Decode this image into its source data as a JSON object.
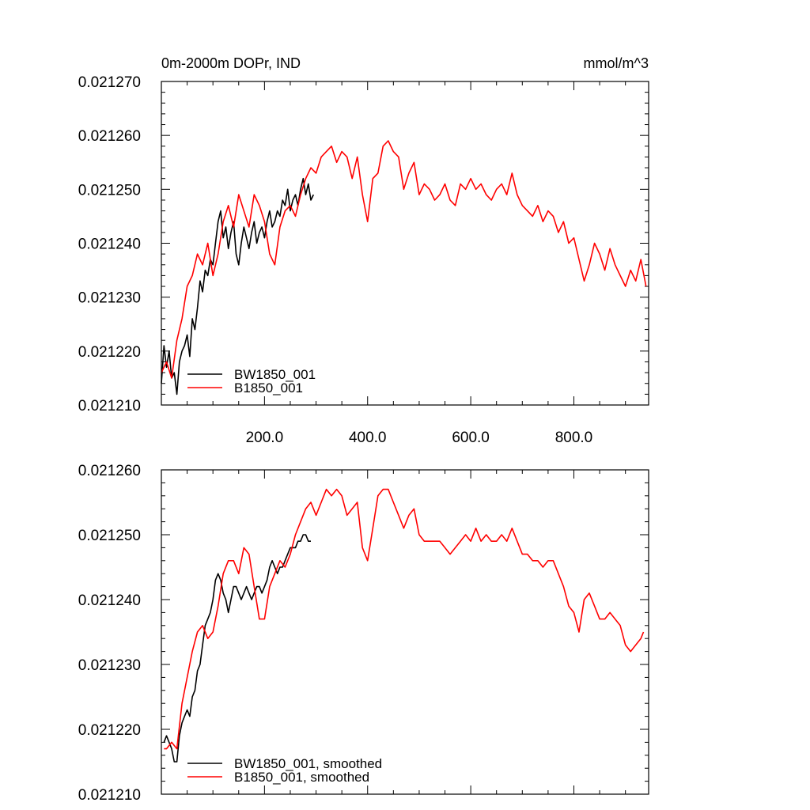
{
  "chart_data": [
    {
      "type": "line",
      "title": "0m-2000m DOPr, IND",
      "units": "mmol/m^3",
      "xlim": [
        0,
        945
      ],
      "ylim": [
        0.02121,
        0.02127
      ],
      "x_ticks": [
        200,
        400,
        600,
        800
      ],
      "x_tick_labels": [
        "200.0",
        "400.0",
        "600.0",
        "800.0"
      ],
      "y_ticks": [
        0.02121,
        0.02122,
        0.02123,
        0.02124,
        0.02125,
        0.02126,
        0.02127
      ],
      "y_tick_labels": [
        "0.021210",
        "0.021220",
        "0.021230",
        "0.021240",
        "0.021250",
        "0.021260",
        "0.021270"
      ],
      "legend_position": "bottom-left",
      "series": [
        {
          "name": "BW1850_001",
          "color": "#000000",
          "x": [
            0,
            5,
            10,
            15,
            20,
            25,
            30,
            35,
            40,
            45,
            50,
            55,
            60,
            65,
            70,
            75,
            80,
            85,
            90,
            95,
            100,
            105,
            110,
            115,
            120,
            125,
            130,
            135,
            140,
            145,
            150,
            155,
            160,
            165,
            170,
            175,
            180,
            185,
            190,
            195,
            200,
            205,
            210,
            215,
            220,
            225,
            230,
            235,
            240,
            245,
            250,
            255,
            260,
            265,
            270,
            275,
            280,
            285,
            290,
            295
          ],
          "y": [
            0.021214,
            0.021221,
            0.021217,
            0.02122,
            0.021215,
            0.021216,
            0.021212,
            0.021218,
            0.02122,
            0.021221,
            0.021223,
            0.021219,
            0.021226,
            0.021224,
            0.021228,
            0.021233,
            0.021231,
            0.021235,
            0.021234,
            0.021237,
            0.021236,
            0.02124,
            0.021244,
            0.021246,
            0.021241,
            0.021243,
            0.021239,
            0.021242,
            0.021244,
            0.021238,
            0.021236,
            0.02124,
            0.021243,
            0.021241,
            0.021239,
            0.021242,
            0.021244,
            0.02124,
            0.021242,
            0.021243,
            0.021241,
            0.021244,
            0.021246,
            0.021243,
            0.021244,
            0.021246,
            0.021245,
            0.021248,
            0.021247,
            0.02125,
            0.021246,
            0.021248,
            0.021249,
            0.021247,
            0.02125,
            0.021252,
            0.021249,
            0.021251,
            0.021248,
            0.021249
          ]
        },
        {
          "name": "B1850_001",
          "color": "#ff0000",
          "x": [
            0,
            10,
            20,
            30,
            40,
            50,
            60,
            70,
            80,
            90,
            100,
            110,
            120,
            130,
            140,
            150,
            160,
            170,
            180,
            190,
            200,
            210,
            220,
            230,
            240,
            250,
            260,
            270,
            280,
            290,
            300,
            310,
            320,
            330,
            340,
            350,
            360,
            370,
            380,
            390,
            400,
            410,
            420,
            430,
            440,
            450,
            460,
            470,
            480,
            490,
            500,
            510,
            520,
            530,
            540,
            550,
            560,
            570,
            580,
            590,
            600,
            610,
            620,
            630,
            640,
            650,
            660,
            670,
            680,
            690,
            700,
            710,
            720,
            730,
            740,
            750,
            760,
            770,
            780,
            790,
            800,
            810,
            820,
            830,
            840,
            850,
            860,
            870,
            880,
            890,
            900,
            910,
            920,
            930,
            940
          ],
          "y": [
            0.021216,
            0.021218,
            0.021215,
            0.021222,
            0.021226,
            0.021232,
            0.021234,
            0.021238,
            0.021236,
            0.02124,
            0.021234,
            0.021238,
            0.021244,
            0.021247,
            0.021243,
            0.021249,
            0.021246,
            0.021243,
            0.021249,
            0.021247,
            0.021244,
            0.021238,
            0.021236,
            0.021243,
            0.021246,
            0.021247,
            0.021245,
            0.021249,
            0.021252,
            0.021254,
            0.021253,
            0.021256,
            0.021257,
            0.021258,
            0.021255,
            0.021257,
            0.021256,
            0.021252,
            0.021256,
            0.021249,
            0.021244,
            0.021252,
            0.021253,
            0.021258,
            0.021259,
            0.021257,
            0.021256,
            0.02125,
            0.021253,
            0.021255,
            0.021249,
            0.021251,
            0.02125,
            0.021248,
            0.021249,
            0.021251,
            0.021248,
            0.021247,
            0.021251,
            0.02125,
            0.021252,
            0.02125,
            0.021251,
            0.021249,
            0.021248,
            0.02125,
            0.021251,
            0.021249,
            0.021253,
            0.021249,
            0.021247,
            0.021246,
            0.021245,
            0.021247,
            0.021244,
            0.021246,
            0.021245,
            0.021242,
            0.021244,
            0.02124,
            0.021241,
            0.021237,
            0.021233,
            0.021236,
            0.02124,
            0.021238,
            0.021235,
            0.021239,
            0.021236,
            0.021234,
            0.021232,
            0.021235,
            0.021233,
            0.021237,
            0.021232
          ]
        }
      ]
    },
    {
      "type": "line",
      "xlim": [
        0,
        945
      ],
      "ylim": [
        0.02121,
        0.02126
      ],
      "x_ticks": [
        200,
        400,
        600,
        800
      ],
      "y_ticks": [
        0.02121,
        0.02122,
        0.02123,
        0.02124,
        0.02125,
        0.02126
      ],
      "y_tick_labels": [
        "0.021210",
        "0.021220",
        "0.021230",
        "0.021240",
        "0.021250",
        "0.021260"
      ],
      "legend_position": "bottom-left",
      "series": [
        {
          "name": "BW1850_001, smoothed",
          "color": "#000000",
          "x": [
            5,
            10,
            15,
            20,
            25,
            30,
            35,
            40,
            45,
            50,
            55,
            60,
            65,
            70,
            75,
            80,
            85,
            90,
            95,
            100,
            105,
            110,
            115,
            120,
            125,
            130,
            135,
            140,
            145,
            150,
            155,
            160,
            165,
            170,
            175,
            180,
            185,
            190,
            195,
            200,
            205,
            210,
            215,
            220,
            225,
            230,
            235,
            240,
            245,
            250,
            255,
            260,
            265,
            270,
            275,
            280,
            285,
            290
          ],
          "y": [
            0.021218,
            0.021219,
            0.021218,
            0.021217,
            0.021215,
            0.021215,
            0.021219,
            0.021221,
            0.021222,
            0.021223,
            0.021222,
            0.021225,
            0.021226,
            0.021229,
            0.02123,
            0.021233,
            0.021236,
            0.021237,
            0.021238,
            0.02124,
            0.021243,
            0.021244,
            0.021243,
            0.021241,
            0.02124,
            0.021238,
            0.02124,
            0.021242,
            0.021242,
            0.021241,
            0.02124,
            0.021241,
            0.021242,
            0.021241,
            0.02124,
            0.021241,
            0.021242,
            0.021242,
            0.021241,
            0.021242,
            0.021243,
            0.021245,
            0.021246,
            0.021245,
            0.021244,
            0.021245,
            0.021245,
            0.021246,
            0.021247,
            0.021248,
            0.021248,
            0.021248,
            0.021249,
            0.021249,
            0.02125,
            0.02125,
            0.021249,
            0.021249
          ]
        },
        {
          "name": "B1850_001, smoothed",
          "color": "#ff0000",
          "x": [
            5,
            10,
            20,
            30,
            40,
            50,
            60,
            70,
            80,
            90,
            100,
            110,
            120,
            130,
            140,
            150,
            160,
            170,
            180,
            190,
            200,
            210,
            220,
            230,
            240,
            250,
            260,
            270,
            280,
            290,
            300,
            310,
            320,
            330,
            340,
            350,
            360,
            370,
            380,
            390,
            400,
            410,
            420,
            430,
            440,
            450,
            460,
            470,
            480,
            490,
            500,
            510,
            520,
            530,
            540,
            550,
            560,
            570,
            580,
            590,
            600,
            610,
            620,
            630,
            640,
            650,
            660,
            670,
            680,
            690,
            700,
            710,
            720,
            730,
            740,
            750,
            760,
            770,
            780,
            790,
            800,
            810,
            820,
            830,
            840,
            850,
            860,
            870,
            880,
            890,
            900,
            910,
            920,
            930,
            935
          ],
          "y": [
            0.021217,
            0.021217,
            0.021218,
            0.021217,
            0.021224,
            0.021228,
            0.021232,
            0.021235,
            0.021236,
            0.021234,
            0.021235,
            0.021239,
            0.021244,
            0.021246,
            0.021246,
            0.021244,
            0.021248,
            0.021247,
            0.021242,
            0.021237,
            0.021237,
            0.021242,
            0.021244,
            0.021246,
            0.021245,
            0.021247,
            0.02125,
            0.021252,
            0.021254,
            0.021255,
            0.021253,
            0.021255,
            0.021257,
            0.021256,
            0.021257,
            0.021256,
            0.021253,
            0.021254,
            0.021255,
            0.021248,
            0.021246,
            0.021251,
            0.021256,
            0.021257,
            0.021257,
            0.021255,
            0.021253,
            0.021251,
            0.021253,
            0.021254,
            0.02125,
            0.021249,
            0.021249,
            0.021249,
            0.021249,
            0.021248,
            0.021247,
            0.021248,
            0.021249,
            0.02125,
            0.021249,
            0.021251,
            0.021249,
            0.02125,
            0.021249,
            0.021249,
            0.02125,
            0.021249,
            0.021251,
            0.021249,
            0.021247,
            0.021247,
            0.021246,
            0.021246,
            0.021245,
            0.021246,
            0.021246,
            0.021244,
            0.021242,
            0.021239,
            0.021238,
            0.021235,
            0.02124,
            0.021241,
            0.021239,
            0.021237,
            0.021237,
            0.021238,
            0.021237,
            0.021236,
            0.021233,
            0.021232,
            0.021233,
            0.021234,
            0.021235
          ]
        }
      ]
    }
  ]
}
